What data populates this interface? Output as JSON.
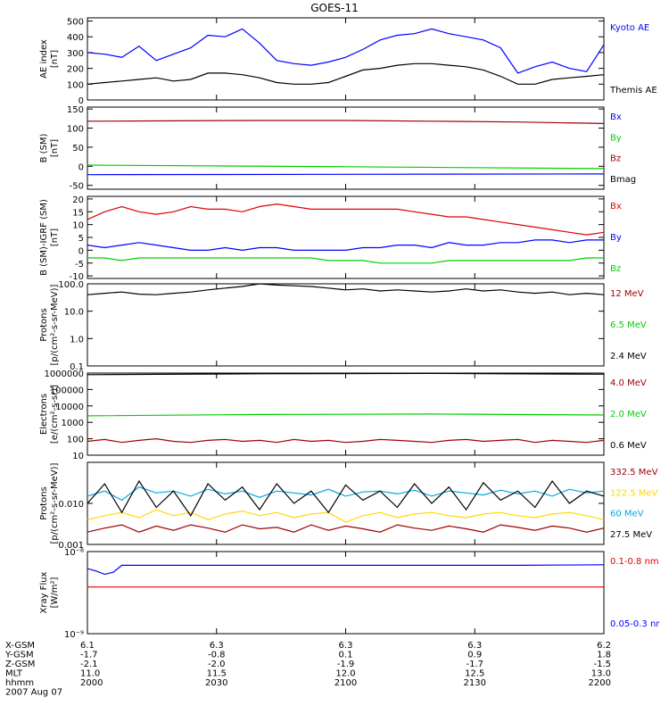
{
  "title": "GOES-11",
  "colors": {
    "black": "#000000",
    "blue": "#0000ff",
    "green": "#00d000",
    "red": "#e00000",
    "darkred": "#a00000",
    "cyan": "#00a8e0",
    "yellow": "#ffd800"
  },
  "x_time_ticks": [
    "2000",
    "2030",
    "2100",
    "2130",
    "2200"
  ],
  "orbit_table": {
    "row_labels": [
      "X-GSM",
      "Y-GSM",
      "Z-GSM",
      "MLT",
      "hhmm"
    ],
    "values": [
      [
        "6.1",
        "6.3",
        "6.3",
        "6.3",
        "6.2"
      ],
      [
        "-1.7",
        "-0.8",
        "0.1",
        "0.9",
        "1.8"
      ],
      [
        "-2.1",
        "-2.0",
        "-1.9",
        "-1.7",
        "-1.5"
      ],
      [
        "11.0",
        "11.5",
        "12.0",
        "12.5",
        "13.0"
      ],
      [
        "2000",
        "2030",
        "2100",
        "2130",
        "2200"
      ]
    ],
    "date": "2007 Aug 07"
  },
  "chart_data": [
    {
      "type": "line",
      "panel": "ae",
      "ylabel": [
        "AE index",
        "[nT]"
      ],
      "ylim": [
        0,
        520
      ],
      "scale": "linear",
      "yticks": [
        0,
        100,
        200,
        300,
        400,
        500
      ],
      "series": [
        {
          "name": "Kyoto AE",
          "color": "#0000ff",
          "x": [
            0,
            2,
            4,
            6,
            8,
            10,
            12,
            14,
            16,
            18,
            20,
            22,
            24,
            26,
            28,
            30,
            32,
            34,
            36,
            38,
            40,
            42,
            44,
            46,
            48,
            50,
            52,
            54,
            56,
            58,
            60
          ],
          "values": [
            300,
            290,
            270,
            340,
            250,
            290,
            330,
            410,
            400,
            450,
            360,
            250,
            230,
            220,
            240,
            270,
            320,
            380,
            410,
            420,
            450,
            420,
            400,
            380,
            330,
            170,
            210,
            240,
            200,
            180,
            350
          ]
        },
        {
          "name": "Themis AE",
          "color": "#000000",
          "x": [
            0,
            2,
            4,
            6,
            8,
            10,
            12,
            14,
            16,
            18,
            20,
            22,
            24,
            26,
            28,
            30,
            32,
            34,
            36,
            38,
            40,
            42,
            44,
            46,
            48,
            50,
            52,
            54,
            56,
            58,
            60
          ],
          "values": [
            100,
            110,
            120,
            130,
            140,
            120,
            130,
            170,
            170,
            160,
            140,
            110,
            100,
            100,
            110,
            150,
            190,
            200,
            220,
            230,
            230,
            220,
            210,
            190,
            150,
            100,
            100,
            130,
            140,
            150,
            160
          ]
        }
      ]
    },
    {
      "type": "line",
      "panel": "b_sm",
      "ylabel": [
        "B (SM)",
        "[nT]"
      ],
      "ylim": [
        -60,
        155
      ],
      "scale": "linear",
      "yticks": [
        -50,
        0,
        50,
        100,
        150
      ],
      "series": [
        {
          "name": "Bx",
          "color": "#0000ff",
          "x": [
            0,
            60
          ],
          "values": [
            -22,
            -20
          ]
        },
        {
          "name": "By",
          "color": "#00d000",
          "x": [
            0,
            30,
            60
          ],
          "values": [
            3,
            -1,
            -6
          ]
        },
        {
          "name": "Bz",
          "color": "#a00000",
          "x": [
            0,
            10,
            20,
            30,
            40,
            50,
            60
          ],
          "values": [
            118,
            119,
            120,
            120,
            118,
            116,
            112
          ]
        },
        {
          "name": "Bmag",
          "color": "#000000",
          "x": [],
          "values": []
        }
      ]
    },
    {
      "type": "line",
      "panel": "b_igrf",
      "ylabel": [
        "B (SM)-IGRF (SM)",
        "[nT]"
      ],
      "ylim": [
        -11,
        21
      ],
      "scale": "linear",
      "yticks": [
        -10,
        -5,
        0,
        5,
        10,
        15,
        20
      ],
      "series": [
        {
          "name": "Bx",
          "color": "#e00000",
          "x": [
            0,
            2,
            4,
            6,
            8,
            10,
            12,
            14,
            16,
            18,
            20,
            22,
            24,
            26,
            28,
            30,
            32,
            34,
            36,
            38,
            40,
            42,
            44,
            46,
            48,
            50,
            52,
            54,
            56,
            58,
            60
          ],
          "values": [
            12,
            15,
            17,
            15,
            14,
            15,
            17,
            16,
            16,
            15,
            17,
            18,
            17,
            16,
            16,
            16,
            16,
            16,
            16,
            15,
            14,
            13,
            13,
            12,
            11,
            10,
            9,
            8,
            7,
            6,
            7
          ]
        },
        {
          "name": "By",
          "color": "#0000ff",
          "x": [
            0,
            2,
            4,
            6,
            8,
            10,
            12,
            14,
            16,
            18,
            20,
            22,
            24,
            26,
            28,
            30,
            32,
            34,
            36,
            38,
            40,
            42,
            44,
            46,
            48,
            50,
            52,
            54,
            56,
            58,
            60
          ],
          "values": [
            2,
            1,
            2,
            3,
            2,
            1,
            0,
            0,
            1,
            0,
            1,
            1,
            0,
            0,
            0,
            0,
            1,
            1,
            2,
            2,
            1,
            3,
            2,
            2,
            3,
            3,
            4,
            4,
            3,
            4,
            4
          ]
        },
        {
          "name": "Bz",
          "color": "#00d000",
          "x": [
            0,
            2,
            4,
            6,
            8,
            10,
            12,
            14,
            16,
            18,
            20,
            22,
            24,
            26,
            28,
            30,
            32,
            34,
            36,
            38,
            40,
            42,
            44,
            46,
            48,
            50,
            52,
            54,
            56,
            58,
            60
          ],
          "values": [
            -3,
            -3,
            -4,
            -3,
            -3,
            -3,
            -3,
            -3,
            -3,
            -3,
            -3,
            -3,
            -3,
            -3,
            -4,
            -4,
            -4,
            -5,
            -5,
            -5,
            -5,
            -4,
            -4,
            -4,
            -4,
            -4,
            -4,
            -4,
            -4,
            -3,
            -3
          ]
        }
      ]
    },
    {
      "type": "line",
      "panel": "protons_low",
      "ylabel": [
        "Protons",
        "[p/(cm²-s-sr-MeV)]"
      ],
      "ylim": [
        0.1,
        100
      ],
      "scale": "log",
      "yticks": [
        0.1,
        1.0,
        10.0,
        100.0
      ],
      "yticklabels": [
        "0.1",
        "1.0",
        "10.0",
        "100.0"
      ],
      "series": [
        {
          "name": "12 MeV",
          "color": "#a00000",
          "x": [],
          "values": []
        },
        {
          "name": "6.5 MeV",
          "color": "#00d000",
          "x": [],
          "values": []
        },
        {
          "name": "2.4 MeV",
          "color": "#000000",
          "x": [
            0,
            2,
            4,
            6,
            8,
            10,
            12,
            14,
            16,
            18,
            20,
            22,
            24,
            26,
            28,
            30,
            32,
            34,
            36,
            38,
            40,
            42,
            44,
            46,
            48,
            50,
            52,
            54,
            56,
            58,
            60
          ],
          "values": [
            40,
            45,
            50,
            42,
            40,
            45,
            50,
            60,
            70,
            80,
            100,
            90,
            85,
            80,
            70,
            60,
            65,
            55,
            60,
            55,
            50,
            55,
            65,
            55,
            60,
            50,
            45,
            50,
            40,
            45,
            40
          ]
        }
      ]
    },
    {
      "type": "line",
      "panel": "electrons",
      "ylabel": [
        "Electrons",
        "[e/(cm²-s-sr)]"
      ],
      "ylim": [
        10,
        1000000
      ],
      "scale": "log",
      "yticks": [
        10,
        100,
        1000,
        10000,
        100000,
        1000000
      ],
      "series": [
        {
          "name": "4.0 MeV",
          "color": "#a00000",
          "x": [
            0,
            2,
            4,
            6,
            8,
            10,
            12,
            14,
            16,
            18,
            20,
            22,
            24,
            26,
            28,
            30,
            32,
            34,
            36,
            38,
            40,
            42,
            44,
            46,
            48,
            50,
            52,
            54,
            56,
            58,
            60
          ],
          "values": [
            70,
            90,
            60,
            80,
            100,
            70,
            60,
            80,
            90,
            70,
            80,
            60,
            90,
            70,
            80,
            60,
            70,
            90,
            80,
            70,
            60,
            80,
            90,
            70,
            80,
            90,
            60,
            80,
            70,
            60,
            80
          ]
        },
        {
          "name": "2.0 MeV",
          "color": "#00d000",
          "x": [
            0,
            20,
            40,
            60
          ],
          "values": [
            2500,
            3000,
            3200,
            2800
          ]
        },
        {
          "name": "0.6 MeV",
          "color": "#000000",
          "x": [
            0,
            20,
            40,
            60
          ],
          "values": [
            800000,
            900000,
            950000,
            850000
          ]
        }
      ]
    },
    {
      "type": "line",
      "panel": "protons_high",
      "ylabel": [
        "Protons",
        "[p/(cm²-s-sr-MeV)]"
      ],
      "ylim": [
        0.001,
        0.1
      ],
      "scale": "log",
      "yticks": [
        0.001,
        0.01
      ],
      "yticklabels": [
        "0.001",
        "0.010"
      ],
      "series": [
        {
          "name": "332.5 MeV",
          "color": "#a00000",
          "x": [
            0,
            2,
            4,
            6,
            8,
            10,
            12,
            14,
            16,
            18,
            20,
            22,
            24,
            26,
            28,
            30,
            32,
            34,
            36,
            38,
            40,
            42,
            44,
            46,
            48,
            50,
            52,
            54,
            56,
            58,
            60
          ],
          "values": [
            0.002,
            0.0025,
            0.003,
            0.002,
            0.0028,
            0.0022,
            0.003,
            0.0025,
            0.002,
            0.003,
            0.0024,
            0.0026,
            0.002,
            0.003,
            0.0022,
            0.0028,
            0.0024,
            0.002,
            0.003,
            0.0025,
            0.0022,
            0.0028,
            0.0024,
            0.002,
            0.003,
            0.0026,
            0.0022,
            0.0028,
            0.0025,
            0.002,
            0.0025
          ]
        },
        {
          "name": "122.5 MeV",
          "color": "#ffd800",
          "x": [
            0,
            2,
            4,
            6,
            8,
            10,
            12,
            14,
            16,
            18,
            20,
            22,
            24,
            26,
            28,
            30,
            32,
            34,
            36,
            38,
            40,
            42,
            44,
            46,
            48,
            50,
            52,
            54,
            56,
            58,
            60
          ],
          "values": [
            0.004,
            0.005,
            0.006,
            0.0045,
            0.007,
            0.005,
            0.006,
            0.004,
            0.0055,
            0.0065,
            0.005,
            0.006,
            0.0045,
            0.0055,
            0.006,
            0.0035,
            0.005,
            0.006,
            0.0045,
            0.0055,
            0.006,
            0.005,
            0.0045,
            0.0055,
            0.006,
            0.005,
            0.0045,
            0.0055,
            0.006,
            0.005,
            0.004
          ]
        },
        {
          "name": "60 MeV",
          "color": "#00a8e0",
          "x": [
            0,
            2,
            4,
            6,
            8,
            10,
            12,
            14,
            16,
            18,
            20,
            22,
            24,
            26,
            28,
            30,
            32,
            34,
            36,
            38,
            40,
            42,
            44,
            46,
            48,
            50,
            52,
            54,
            56,
            58,
            60
          ],
          "values": [
            0.015,
            0.02,
            0.012,
            0.025,
            0.018,
            0.02,
            0.015,
            0.022,
            0.017,
            0.02,
            0.014,
            0.02,
            0.018,
            0.016,
            0.022,
            0.015,
            0.019,
            0.02,
            0.017,
            0.021,
            0.015,
            0.02,
            0.018,
            0.016,
            0.021,
            0.017,
            0.02,
            0.015,
            0.022,
            0.018,
            0.02
          ]
        },
        {
          "name": "27.5 MeV",
          "color": "#000000",
          "x": [
            0,
            2,
            4,
            6,
            8,
            10,
            12,
            14,
            16,
            18,
            20,
            22,
            24,
            26,
            28,
            30,
            32,
            34,
            36,
            38,
            40,
            42,
            44,
            46,
            48,
            50,
            52,
            54,
            56,
            58,
            60
          ],
          "values": [
            0.01,
            0.03,
            0.006,
            0.035,
            0.008,
            0.02,
            0.005,
            0.03,
            0.012,
            0.025,
            0.007,
            0.03,
            0.01,
            0.02,
            0.006,
            0.028,
            0.012,
            0.02,
            0.008,
            0.03,
            0.01,
            0.025,
            0.007,
            0.032,
            0.012,
            0.02,
            0.008,
            0.035,
            0.01,
            0.02,
            0.015
          ]
        }
      ]
    },
    {
      "type": "line",
      "panel": "xray",
      "ylabel": [
        "Xray Flux",
        "[W/m²]"
      ],
      "ylim": [
        1e-09,
        1e-08
      ],
      "scale": "log",
      "yticks": [
        1e-09,
        1e-08
      ],
      "yticklabels": [
        "10⁻⁹",
        "10⁻⁸"
      ],
      "series": [
        {
          "name": "0.1-0.8 nm",
          "color": "#e00000",
          "x": [
            0,
            60
          ],
          "values": [
            3.7e-09,
            3.7e-09
          ]
        },
        {
          "name": "0.05-0.3 nr",
          "color": "#0000ff",
          "x": [
            0,
            1,
            2,
            3,
            4,
            10,
            20,
            30,
            40,
            50,
            60
          ],
          "values": [
            6.2e-09,
            5.8e-09,
            5.3e-09,
            5.6e-09,
            6.8e-09,
            6.8e-09,
            6.8e-09,
            6.8e-09,
            6.8e-09,
            6.8e-09,
            6.9e-09
          ]
        }
      ]
    }
  ]
}
